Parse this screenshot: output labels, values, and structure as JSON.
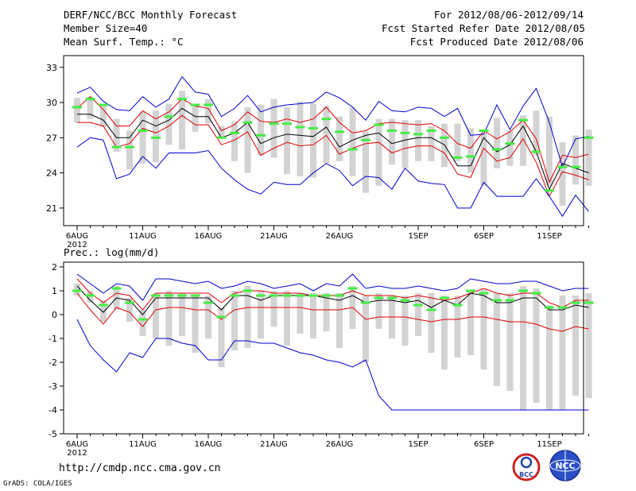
{
  "header": {
    "title": "DERF/NCC/BCC Monthly Forecast",
    "member_size": "Member Size=40",
    "variable": "Mean Surf. Temp.: °C",
    "period": "For 2012/08/06-2012/09/14",
    "started": "Fcst Started Refer Date 2012/08/05",
    "produced": "Fcst Produced Date 2012/08/06"
  },
  "footer": {
    "url": "http://cmdp.ncc.cma.gov.cn",
    "credit": "GrADS: COLA/IGES"
  },
  "logos": [
    {
      "name": "bcc-logo",
      "text": "BCC"
    },
    {
      "name": "ncc-logo",
      "text": "NCC"
    }
  ],
  "colors": {
    "box": "#d3d3d3",
    "ensemble_mean": "#000000",
    "spread": "#dd0000",
    "envelope": "#0000cc",
    "median_marker": "#44ee44"
  },
  "chart_data": [
    {
      "type": "box-plume",
      "title": "Mean Surf. Temp.: °C",
      "xlabel": "",
      "ylabel": "°C",
      "ylim": [
        19.5,
        34
      ],
      "yticks": [
        21,
        24,
        27,
        30,
        33
      ],
      "xticks": [
        {
          "day": 1,
          "label": "6AUG"
        },
        {
          "day": 6,
          "label": "11AUG"
        },
        {
          "day": 11,
          "label": "16AUG"
        },
        {
          "day": 16,
          "label": "21AUG"
        },
        {
          "day": 21,
          "label": "26AUG"
        },
        {
          "day": 27,
          "label": "1SEP"
        },
        {
          "day": 32,
          "label": "6SEP"
        },
        {
          "day": 37,
          "label": "11SEP"
        }
      ],
      "year_label": "2012",
      "days": [
        1,
        2,
        3,
        4,
        5,
        6,
        7,
        8,
        9,
        10,
        11,
        12,
        13,
        14,
        15,
        16,
        17,
        18,
        19,
        20,
        21,
        22,
        23,
        24,
        25,
        26,
        27,
        28,
        29,
        30,
        31,
        32,
        33,
        34,
        35,
        36,
        37,
        38,
        39,
        40
      ],
      "box_low": [
        28.3,
        28.6,
        27.9,
        25.8,
        24.3,
        24.8,
        24.9,
        26.4,
        26.0,
        27.5,
        28.2,
        27.0,
        25.0,
        24.0,
        25.5,
        25.3,
        23.9,
        23.7,
        23.6,
        24.8,
        25.0,
        23.7,
        22.3,
        22.9,
        24.7,
        24.4,
        25.0,
        25.0,
        24.5,
        25.0,
        24.0,
        22.9,
        24.4,
        24.6,
        24.6,
        25.5,
        22.9,
        21.2,
        23.0,
        22.9
      ],
      "box_high": [
        30.4,
        30.5,
        29.9,
        28.6,
        27.6,
        29.2,
        29.3,
        29.9,
        31.0,
        29.7,
        30.3,
        28.0,
        28.4,
        29.6,
        29.8,
        30.3,
        29.6,
        30.1,
        29.9,
        29.7,
        28.8,
        29.6,
        27.5,
        28.6,
        28.6,
        28.5,
        28.5,
        28.0,
        28.2,
        28.2,
        27.8,
        27.4,
        28.7,
        27.6,
        28.9,
        29.3,
        28.8,
        26.6,
        27.2,
        27.7
      ],
      "median": [
        29.6,
        30.3,
        29.8,
        26.2,
        26.2,
        27.6,
        27.0,
        28.8,
        30.3,
        29.8,
        29.8,
        27.0,
        27.4,
        28.3,
        27.2,
        28.2,
        28.2,
        27.9,
        27.8,
        28.6,
        27.5,
        26.0,
        26.8,
        28.1,
        27.6,
        27.4,
        27.3,
        27.6,
        27.0,
        25.3,
        25.4,
        27.6,
        26.0,
        26.5,
        28.5,
        25.8,
        22.5,
        24.5,
        24.5,
        27.0
      ],
      "series": [
        {
          "name": "ensemble-max",
          "color": "#0000cc",
          "values": [
            30.8,
            31.3,
            30.1,
            29.4,
            29.3,
            30.5,
            29.6,
            30.3,
            32.2,
            30.9,
            30.7,
            28.8,
            29.5,
            30.6,
            29.2,
            29.6,
            29.8,
            29.9,
            30.0,
            30.9,
            30.4,
            29.6,
            28.5,
            30.1,
            29.3,
            29.2,
            29.6,
            29.5,
            28.8,
            29.5,
            27.2,
            27.3,
            29.8,
            27.7,
            29.7,
            31.2,
            28.3,
            24.5,
            26.9,
            27.1
          ]
        },
        {
          "name": "mean-plus-sd",
          "color": "#dd0000",
          "values": [
            29.5,
            30.5,
            29.4,
            28.0,
            28.0,
            29.3,
            28.6,
            29.2,
            30.3,
            29.7,
            29.5,
            27.6,
            28.1,
            29.2,
            28.4,
            28.3,
            28.6,
            28.3,
            28.6,
            29.6,
            28.3,
            27.4,
            27.6,
            28.2,
            28.3,
            28.2,
            28.1,
            28.2,
            27.6,
            26.5,
            26.1,
            27.6,
            26.9,
            27.5,
            28.5,
            26.9,
            23.2,
            25.5,
            25.3,
            25.6
          ]
        },
        {
          "name": "ensemble-mean",
          "color": "#000000",
          "values": [
            29.0,
            29.0,
            28.5,
            27.0,
            27.0,
            28.5,
            28.0,
            28.5,
            29.5,
            28.8,
            28.8,
            27.0,
            27.4,
            28.3,
            26.5,
            27.0,
            27.3,
            27.2,
            27.1,
            27.9,
            26.2,
            26.8,
            27.2,
            27.4,
            26.5,
            26.8,
            27.0,
            27.0,
            26.4,
            24.6,
            24.6,
            27.0,
            25.8,
            26.4,
            28.0,
            25.8,
            22.6,
            24.8,
            24.4,
            24.0
          ]
        },
        {
          "name": "mean-minus-sd",
          "color": "#dd0000",
          "values": [
            28.3,
            28.3,
            28.0,
            26.2,
            26.5,
            27.8,
            27.4,
            28.0,
            28.9,
            28.1,
            28.1,
            26.4,
            26.8,
            27.5,
            25.5,
            26.1,
            26.6,
            26.3,
            26.4,
            27.2,
            25.6,
            26.1,
            26.5,
            26.6,
            25.7,
            26.1,
            26.3,
            26.3,
            25.7,
            23.9,
            23.6,
            26.1,
            25.0,
            25.3,
            26.9,
            24.9,
            22.0,
            24.1,
            23.8,
            23.4
          ]
        },
        {
          "name": "ensemble-min",
          "color": "#0000cc",
          "values": [
            26.2,
            27.0,
            26.8,
            23.5,
            23.9,
            25.4,
            24.4,
            25.7,
            25.7,
            25.7,
            25.9,
            24.4,
            23.4,
            22.6,
            22.2,
            23.2,
            23.0,
            23.0,
            24.0,
            24.8,
            24.2,
            22.9,
            23.7,
            23.6,
            22.6,
            24.4,
            23.3,
            23.1,
            23.0,
            21.0,
            21.0,
            23.2,
            22.0,
            22.0,
            22.0,
            23.5,
            22.0,
            20.3,
            22.1,
            20.7
          ]
        }
      ]
    },
    {
      "type": "box-plume",
      "title": "Prec.: log(mm/d)",
      "xlabel": "",
      "ylabel": "log(mm/d)",
      "ylim": [
        -5,
        2.2
      ],
      "yticks": [
        -5,
        -4,
        -3,
        -2,
        -1,
        0,
        1,
        2
      ],
      "xticks": [
        {
          "day": 1,
          "label": "6AUG"
        },
        {
          "day": 6,
          "label": "11AUG"
        },
        {
          "day": 11,
          "label": "16AUG"
        },
        {
          "day": 16,
          "label": "21AUG"
        },
        {
          "day": 21,
          "label": "26AUG"
        },
        {
          "day": 27,
          "label": "1SEP"
        },
        {
          "day": 32,
          "label": "6SEP"
        },
        {
          "day": 37,
          "label": "11SEP"
        }
      ],
      "year_label": "2012",
      "days": [
        1,
        2,
        3,
        4,
        5,
        6,
        7,
        8,
        9,
        10,
        11,
        12,
        13,
        14,
        15,
        16,
        17,
        18,
        19,
        20,
        21,
        22,
        23,
        24,
        25,
        26,
        27,
        28,
        29,
        30,
        31,
        32,
        33,
        34,
        35,
        36,
        37,
        38,
        39,
        40
      ],
      "box_low": [
        0.8,
        0.5,
        -0.3,
        0.2,
        -0.3,
        -0.9,
        -1.0,
        -1.3,
        -0.9,
        -1.6,
        -1.0,
        -2.2,
        -1.5,
        -1.4,
        -1.0,
        -0.5,
        -1.3,
        -0.8,
        -1.0,
        -0.7,
        -1.4,
        -0.6,
        -2.0,
        -0.6,
        -1.0,
        -1.3,
        -0.9,
        -1.6,
        -2.3,
        -1.8,
        -1.7,
        -2.3,
        -3.0,
        -3.2,
        -4.0,
        -3.7,
        -4.0,
        -4.0,
        -3.4,
        -3.5
      ],
      "box_high": [
        1.3,
        1.0,
        0.6,
        1.2,
        0.7,
        0.2,
        0.9,
        1.0,
        0.9,
        0.8,
        0.8,
        0.3,
        1.0,
        1.2,
        1.0,
        1.0,
        1.0,
        0.9,
        0.9,
        0.9,
        0.9,
        1.2,
        0.8,
        0.9,
        0.8,
        0.8,
        0.9,
        0.9,
        0.8,
        0.8,
        1.0,
        1.1,
        0.9,
        0.9,
        1.2,
        1.1,
        0.4,
        0.8,
        0.8,
        0.9
      ],
      "median": [
        1.0,
        0.8,
        0.4,
        1.1,
        0.5,
        -0.2,
        0.8,
        0.8,
        0.8,
        0.8,
        0.5,
        -0.1,
        0.8,
        1.0,
        0.8,
        0.8,
        0.8,
        0.8,
        0.8,
        0.8,
        0.8,
        1.1,
        0.5,
        0.7,
        0.7,
        0.6,
        0.4,
        0.2,
        0.7,
        0.4,
        1.0,
        0.9,
        0.6,
        0.6,
        1.0,
        0.9,
        0.3,
        0.3,
        0.5,
        0.5
      ],
      "series": [
        {
          "name": "ensemble-max",
          "color": "#0000cc",
          "values": [
            1.7,
            1.3,
            0.9,
            1.3,
            1.2,
            0.6,
            1.5,
            1.5,
            1.4,
            1.3,
            1.4,
            1.1,
            1.2,
            1.4,
            1.3,
            1.1,
            1.2,
            1.3,
            1.0,
            1.3,
            1.2,
            1.7,
            1.1,
            1.2,
            1.1,
            1.1,
            1.2,
            1.1,
            1.0,
            1.1,
            1.5,
            1.4,
            1.3,
            1.3,
            1.4,
            1.4,
            1.2,
            1.0,
            1.1,
            1.1
          ]
        },
        {
          "name": "mean-plus-sd",
          "color": "#dd0000",
          "values": [
            1.5,
            0.9,
            0.5,
            0.9,
            0.8,
            0.2,
            0.9,
            0.9,
            0.9,
            0.9,
            0.9,
            0.5,
            0.9,
            1.0,
            1.0,
            0.9,
            0.9,
            0.9,
            0.8,
            0.8,
            0.8,
            1.0,
            0.8,
            0.8,
            0.8,
            0.7,
            0.8,
            0.7,
            0.6,
            0.7,
            0.9,
            1.1,
            0.9,
            0.8,
            0.9,
            0.9,
            0.5,
            0.3,
            0.6,
            0.6
          ]
        },
        {
          "name": "ensemble-mean",
          "color": "#000000",
          "values": [
            1.2,
            0.6,
            0.1,
            0.7,
            0.6,
            0.0,
            0.7,
            0.7,
            0.7,
            0.7,
            0.7,
            0.2,
            0.8,
            0.8,
            0.6,
            0.8,
            0.8,
            0.8,
            0.8,
            0.7,
            0.6,
            0.8,
            0.5,
            0.6,
            0.6,
            0.5,
            0.6,
            0.3,
            0.6,
            0.4,
            0.9,
            0.8,
            0.5,
            0.5,
            0.7,
            0.7,
            0.2,
            0.2,
            0.4,
            0.3
          ]
        },
        {
          "name": "mean-minus-sd",
          "color": "#dd0000",
          "values": [
            0.9,
            0.2,
            -0.4,
            0.3,
            0.1,
            -0.5,
            0.2,
            0.3,
            0.3,
            0.2,
            0.2,
            -0.2,
            0.2,
            0.3,
            0.3,
            0.3,
            0.3,
            0.3,
            0.2,
            0.2,
            0.2,
            0.3,
            -0.2,
            -0.1,
            -0.1,
            -0.1,
            -0.2,
            -0.3,
            -0.2,
            -0.2,
            -0.1,
            -0.1,
            -0.2,
            -0.3,
            -0.3,
            -0.4,
            -0.6,
            -0.7,
            -0.5,
            -0.6
          ]
        },
        {
          "name": "ensemble-min",
          "color": "#0000cc",
          "values": [
            -0.2,
            -1.3,
            -1.9,
            -2.4,
            -1.6,
            -1.8,
            -1.0,
            -1.0,
            -1.2,
            -1.3,
            -1.9,
            -1.9,
            -1.1,
            -1.1,
            -1.2,
            -1.2,
            -1.4,
            -1.6,
            -1.7,
            -1.9,
            -2.0,
            -2.2,
            -1.9,
            -3.4,
            -4.0,
            -4.0,
            -4.0,
            -4.0,
            -4.0,
            -4.0,
            -4.0,
            -4.0,
            -4.0,
            -4.0,
            -4.0,
            -4.0,
            -4.0,
            -4.0,
            -4.0,
            -4.0
          ]
        }
      ]
    }
  ]
}
